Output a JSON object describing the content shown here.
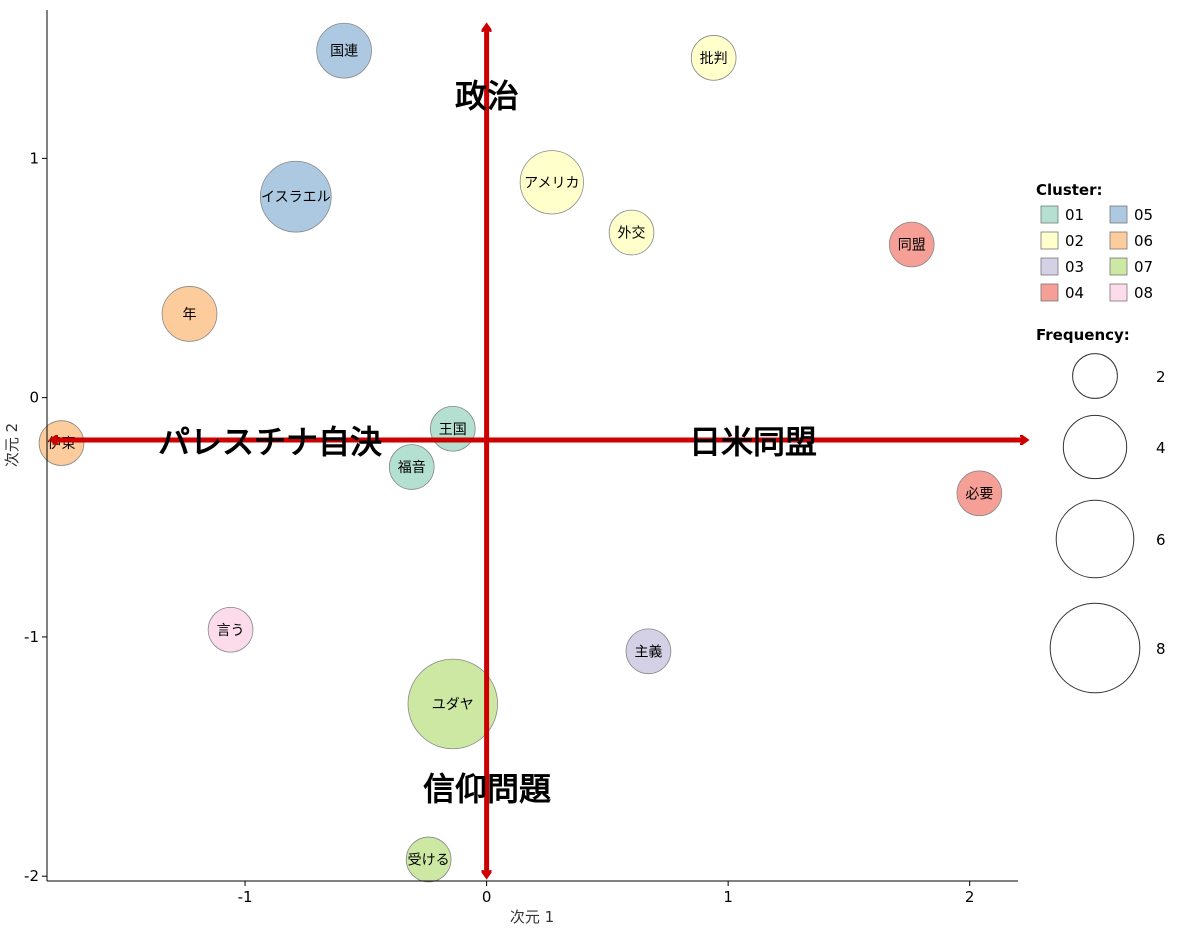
{
  "chart_data": {
    "type": "scatter",
    "title": "",
    "xlabel": "次元 1",
    "ylabel": "次元 2",
    "xlim": [
      -1.82,
      2.2
    ],
    "ylim": [
      -2.02,
      1.62
    ],
    "xticks": [
      -1,
      0,
      1,
      2
    ],
    "yticks": [
      -2,
      -1,
      0,
      1
    ],
    "points": [
      {
        "label": "国連",
        "x": -0.59,
        "y": 1.45,
        "cluster": "05",
        "frequency": 3
      },
      {
        "label": "批判",
        "x": 0.94,
        "y": 1.42,
        "cluster": "02",
        "frequency": 2
      },
      {
        "label": "アメリカ",
        "x": 0.27,
        "y": 0.9,
        "cluster": "02",
        "frequency": 4
      },
      {
        "label": "イスラエル",
        "x": -0.79,
        "y": 0.84,
        "cluster": "05",
        "frequency": 5
      },
      {
        "label": "外交",
        "x": 0.6,
        "y": 0.69,
        "cluster": "02",
        "frequency": 2
      },
      {
        "label": "同盟",
        "x": 1.76,
        "y": 0.64,
        "cluster": "04",
        "frequency": 2
      },
      {
        "label": "年",
        "x": -1.23,
        "y": 0.35,
        "cluster": "06",
        "frequency": 3
      },
      {
        "label": "王国",
        "x": -0.14,
        "y": -0.13,
        "cluster": "01",
        "frequency": 2
      },
      {
        "label": "伊東",
        "x": -1.76,
        "y": -0.19,
        "cluster": "06",
        "frequency": 2
      },
      {
        "label": "福音",
        "x": -0.31,
        "y": -0.29,
        "cluster": "01",
        "frequency": 2
      },
      {
        "label": "必要",
        "x": 2.04,
        "y": -0.4,
        "cluster": "04",
        "frequency": 2
      },
      {
        "label": "言う",
        "x": -1.06,
        "y": -0.97,
        "cluster": "08",
        "frequency": 2
      },
      {
        "label": "主義",
        "x": 0.67,
        "y": -1.06,
        "cluster": "03",
        "frequency": 2
      },
      {
        "label": "ユダヤ",
        "x": -0.14,
        "y": -1.28,
        "cluster": "07",
        "frequency": 8
      },
      {
        "label": "受ける",
        "x": -0.24,
        "y": -1.93,
        "cluster": "07",
        "frequency": 2
      }
    ],
    "cluster_legend": {
      "title": "Cluster:",
      "entries": [
        {
          "name": "01",
          "color": "#a6dbc8"
        },
        {
          "name": "02",
          "color": "#ffffc2"
        },
        {
          "name": "03",
          "color": "#cdc9e2"
        },
        {
          "name": "04",
          "color": "#f58e84"
        },
        {
          "name": "05",
          "color": "#9dc0dc"
        },
        {
          "name": "06",
          "color": "#fcc38b"
        },
        {
          "name": "07",
          "color": "#c3e493"
        },
        {
          "name": "08",
          "color": "#fbd6e8"
        }
      ]
    },
    "frequency_legend": {
      "title": "Frequency:",
      "entries": [
        2,
        4,
        6,
        8
      ]
    },
    "annotations": {
      "color": "#cc0000",
      "labels": [
        "政治",
        "信仰問題",
        "パレスチナ自決",
        "日米同盟"
      ]
    },
    "legend_position": "right",
    "grid": false
  }
}
